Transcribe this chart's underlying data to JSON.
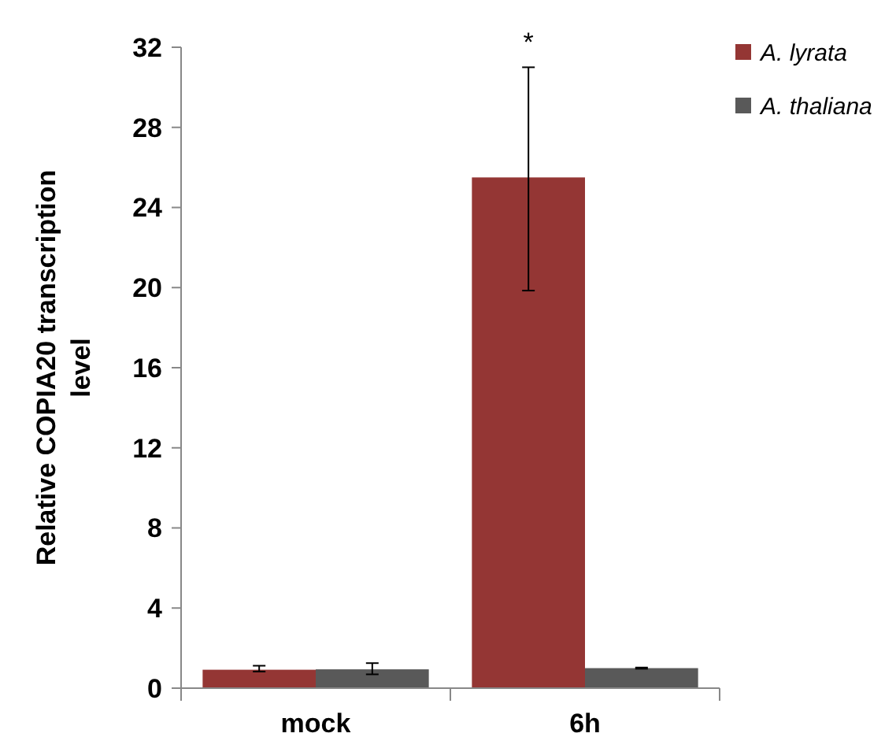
{
  "chart_data": {
    "type": "bar",
    "categories": [
      "mock",
      "6h"
    ],
    "ylabel": "Relative COPIA20 transcription level",
    "ylim": [
      0,
      32
    ],
    "yticks": [
      0,
      4,
      8,
      12,
      16,
      20,
      24,
      28,
      32
    ],
    "series": [
      {
        "name": "A. lyrata",
        "color": "#943634",
        "values": [
          0.92,
          25.5
        ],
        "errors": [
          [
            0.83,
            1.12
          ],
          [
            19.85,
            31.0
          ]
        ]
      },
      {
        "name": "A. thaliana",
        "color": "#595959",
        "values": [
          0.94,
          1.0
        ],
        "errors": [
          [
            0.69,
            1.25
          ],
          [
            0.97,
            1.03
          ]
        ]
      }
    ],
    "annotations": [
      "*"
    ],
    "legend": "top right",
    "grid": false
  }
}
